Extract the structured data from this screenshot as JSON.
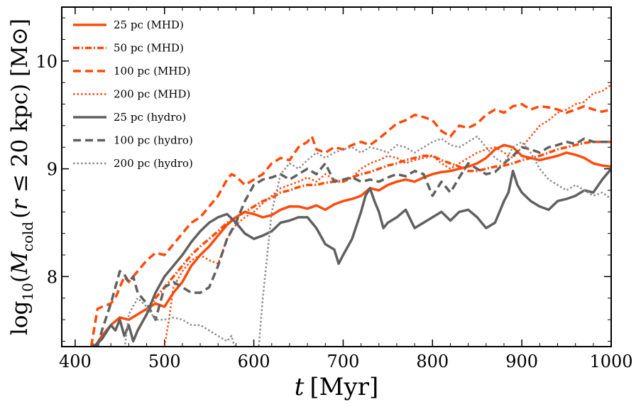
{
  "chart_data": {
    "type": "line",
    "xlabel": "t [Myr]",
    "ylabel": "log10(Mcold (r ≤ 20 kpc) [M⊙]",
    "xlabel_parts": {
      "var": "t",
      "unit": "[Myr]"
    },
    "ylabel_parts": {
      "log": "log",
      "sub": "10",
      "open": "(",
      "M": "M",
      "cold": "cold",
      "r": "r",
      "le": " ≤ 20 kpc) [M",
      "sun": "⊙",
      "close": "]"
    },
    "xlim": [
      385,
      1000
    ],
    "ylim": [
      7.35,
      10.5
    ],
    "xticks": [
      400,
      500,
      600,
      700,
      800,
      900,
      1000
    ],
    "xtick_labels": [
      "400",
      "500",
      "600",
      "700",
      "800",
      "900",
      "1000"
    ],
    "yticks": [
      8,
      9,
      10
    ],
    "ytick_labels": [
      "8",
      "9",
      "10"
    ],
    "legend_position": "top-left",
    "series": [
      {
        "name": "25 pc (MHD)",
        "color": "#ff4a0a",
        "style": "solid",
        "x": [
          418,
          430,
          440,
          450,
          460,
          470,
          480,
          490,
          500,
          510,
          520,
          530,
          540,
          550,
          560,
          570,
          580,
          590,
          600,
          610,
          620,
          630,
          640,
          650,
          660,
          670,
          680,
          690,
          700,
          710,
          720,
          730,
          740,
          750,
          760,
          770,
          780,
          790,
          800,
          810,
          820,
          830,
          840,
          850,
          860,
          870,
          880,
          890,
          900,
          910,
          920,
          930,
          940,
          950,
          960,
          970,
          980,
          990,
          1000
        ],
        "y": [
          7.3,
          7.45,
          7.55,
          7.62,
          7.6,
          7.65,
          7.7,
          7.75,
          7.72,
          7.85,
          7.95,
          8.1,
          8.2,
          8.28,
          8.38,
          8.48,
          8.55,
          8.6,
          8.58,
          8.55,
          8.57,
          8.62,
          8.65,
          8.65,
          8.63,
          8.66,
          8.62,
          8.67,
          8.7,
          8.72,
          8.75,
          8.82,
          8.8,
          8.85,
          8.88,
          8.9,
          8.88,
          8.92,
          8.95,
          8.97,
          8.98,
          9.0,
          9.02,
          9.05,
          9.1,
          9.18,
          9.22,
          9.2,
          9.12,
          9.1,
          9.08,
          9.1,
          9.12,
          9.15,
          9.13,
          9.1,
          9.05,
          9.03,
          9.02
        ]
      },
      {
        "name": "50 pc (MHD)",
        "color": "#ff4a0a",
        "style": "dashdot",
        "x": [
          470,
          480,
          490,
          500,
          510,
          520,
          530,
          540,
          550,
          560,
          570,
          580,
          590,
          600,
          610,
          620,
          630,
          640,
          650,
          660,
          670,
          680,
          690,
          700,
          710,
          720,
          730,
          740,
          750,
          760,
          770,
          780,
          790,
          800,
          810,
          820,
          830,
          840,
          850,
          860,
          870,
          880,
          890,
          900,
          910,
          920,
          930,
          940,
          950,
          960,
          970,
          980,
          990,
          1000
        ],
        "y": [
          7.5,
          7.65,
          7.8,
          7.9,
          8.0,
          8.1,
          8.2,
          8.28,
          8.35,
          8.42,
          8.5,
          8.55,
          8.6,
          8.65,
          8.7,
          8.73,
          8.78,
          8.8,
          8.83,
          8.85,
          8.85,
          8.87,
          8.88,
          8.88,
          8.92,
          8.95,
          8.97,
          9.0,
          9.03,
          9.05,
          9.08,
          9.1,
          9.12,
          9.12,
          9.08,
          9.05,
          9.02,
          8.98,
          8.98,
          9.0,
          9.02,
          9.03,
          9.05,
          9.08,
          9.1,
          9.12,
          9.15,
          9.18,
          9.2,
          9.22,
          9.24,
          9.25,
          9.25,
          9.25
        ]
      },
      {
        "name": "100 pc (MHD)",
        "color": "#ff4a0a",
        "style": "dashed",
        "x": [
          418,
          425,
          430,
          440,
          445,
          450,
          455,
          460,
          470,
          480,
          490,
          500,
          510,
          520,
          530,
          540,
          550,
          560,
          570,
          575,
          580,
          590,
          600,
          610,
          620,
          630,
          640,
          650,
          660,
          665,
          670,
          680,
          690,
          700,
          710,
          720,
          730,
          740,
          750,
          760,
          770,
          780,
          790,
          800,
          810,
          820,
          830,
          840,
          850,
          860,
          870,
          880,
          890,
          900,
          910,
          920,
          930,
          940,
          950,
          960,
          970,
          980,
          990,
          1000
        ],
        "y": [
          7.35,
          7.7,
          7.72,
          7.75,
          7.8,
          7.9,
          8.0,
          7.95,
          8.05,
          8.15,
          8.22,
          8.2,
          8.3,
          8.4,
          8.5,
          8.55,
          8.65,
          8.75,
          8.9,
          8.95,
          8.93,
          8.85,
          8.9,
          8.95,
          9.05,
          9.1,
          9.08,
          9.2,
          9.25,
          9.3,
          9.18,
          9.15,
          9.2,
          9.18,
          9.22,
          9.25,
          9.22,
          9.28,
          9.35,
          9.42,
          9.45,
          9.5,
          9.48,
          9.45,
          9.35,
          9.3,
          9.4,
          9.38,
          9.42,
          9.5,
          9.55,
          9.52,
          9.58,
          9.6,
          9.55,
          9.58,
          9.57,
          9.55,
          9.52,
          9.55,
          9.58,
          9.55,
          9.53,
          9.55
        ]
      },
      {
        "name": "200 pc (MHD)",
        "color": "#ff4a0a",
        "style": "dotted",
        "x": [
          500,
          505,
          510,
          520,
          530,
          540,
          550,
          560,
          570,
          580,
          590,
          600,
          610,
          620,
          630,
          640,
          650,
          660,
          670,
          680,
          690,
          700,
          710,
          720,
          730,
          740,
          750,
          760,
          770,
          780,
          790,
          800,
          810,
          820,
          830,
          840,
          850,
          860,
          870,
          880,
          890,
          900,
          910,
          920,
          930,
          940,
          950,
          960,
          970,
          980,
          990,
          1000
        ],
        "y": [
          7.35,
          7.6,
          7.9,
          8.05,
          8.15,
          8.2,
          8.15,
          8.12,
          8.35,
          8.48,
          8.55,
          8.6,
          8.68,
          8.75,
          8.82,
          8.85,
          8.88,
          8.92,
          8.88,
          8.95,
          8.9,
          8.88,
          8.92,
          9.0,
          9.05,
          9.08,
          9.12,
          9.1,
          9.05,
          9.08,
          9.1,
          9.12,
          9.05,
          9.0,
          9.05,
          9.1,
          9.15,
          9.18,
          9.2,
          9.15,
          9.1,
          9.2,
          9.3,
          9.4,
          9.45,
          9.52,
          9.55,
          9.6,
          9.62,
          9.7,
          9.72,
          9.78
        ]
      },
      {
        "name": "25 pc (hydro)",
        "color": "#606060",
        "style": "solid",
        "x": [
          420,
          425,
          430,
          440,
          445,
          450,
          455,
          460,
          465,
          470,
          480,
          490,
          500,
          510,
          520,
          530,
          540,
          550,
          560,
          570,
          580,
          590,
          600,
          610,
          620,
          630,
          640,
          650,
          660,
          670,
          680,
          690,
          695,
          700,
          710,
          720,
          725,
          730,
          735,
          740,
          745,
          750,
          760,
          770,
          780,
          790,
          800,
          810,
          820,
          830,
          840,
          850,
          860,
          870,
          880,
          885,
          890,
          895,
          900,
          910,
          920,
          930,
          940,
          950,
          960,
          970,
          980,
          990,
          1000
        ],
        "y": [
          7.35,
          7.38,
          7.42,
          7.55,
          7.5,
          7.6,
          7.45,
          7.55,
          7.4,
          7.5,
          7.65,
          7.85,
          8.0,
          8.1,
          8.2,
          8.32,
          8.42,
          8.5,
          8.55,
          8.58,
          8.5,
          8.4,
          8.35,
          8.38,
          8.42,
          8.5,
          8.52,
          8.55,
          8.55,
          8.45,
          8.3,
          8.25,
          8.12,
          8.2,
          8.35,
          8.6,
          8.75,
          8.82,
          8.7,
          8.6,
          8.45,
          8.5,
          8.55,
          8.62,
          8.45,
          8.5,
          8.55,
          8.6,
          8.52,
          8.6,
          8.62,
          8.55,
          8.45,
          8.5,
          8.7,
          8.78,
          8.98,
          8.85,
          8.78,
          8.7,
          8.65,
          8.62,
          8.7,
          8.72,
          8.75,
          8.8,
          8.78,
          8.9,
          9.0
        ]
      },
      {
        "name": "100 pc (hydro)",
        "color": "#606060",
        "style": "dashed",
        "x": [
          425,
          430,
          440,
          445,
          450,
          455,
          460,
          465,
          470,
          480,
          490,
          500,
          510,
          520,
          530,
          540,
          550,
          560,
          570,
          580,
          590,
          600,
          610,
          620,
          630,
          640,
          650,
          660,
          670,
          680,
          690,
          700,
          710,
          720,
          730,
          740,
          750,
          760,
          770,
          780,
          790,
          800,
          810,
          820,
          830,
          840,
          850,
          860,
          870,
          880,
          890,
          900,
          910,
          920,
          930,
          940,
          950,
          960,
          970,
          980,
          990,
          1000
        ],
        "y": [
          7.35,
          7.5,
          7.75,
          7.9,
          8.05,
          8.02,
          7.95,
          8.0,
          7.85,
          7.75,
          7.6,
          7.9,
          7.95,
          7.9,
          7.85,
          7.85,
          7.9,
          8.1,
          8.35,
          8.5,
          8.7,
          8.85,
          8.9,
          8.92,
          8.95,
          8.9,
          8.95,
          9.0,
          8.95,
          9.05,
          8.88,
          8.9,
          8.92,
          8.88,
          8.9,
          8.88,
          8.92,
          8.95,
          8.93,
          8.98,
          8.95,
          8.75,
          8.88,
          8.78,
          8.92,
          9.05,
          9.0,
          8.95,
          8.97,
          9.05,
          9.12,
          9.2,
          9.18,
          9.15,
          9.2,
          9.22,
          9.25,
          9.23,
          9.28,
          9.25,
          9.25,
          9.25
        ]
      },
      {
        "name": "200 pc (hydro)",
        "color": "#8c8c8c",
        "style": "dotted",
        "x": [
          455,
          460,
          470,
          480,
          490,
          500,
          510,
          520,
          530,
          540,
          550,
          560,
          570,
          575,
          580,
          585,
          590,
          600,
          605,
          610,
          615,
          620,
          630,
          640,
          650,
          660,
          670,
          680,
          690,
          700,
          710,
          720,
          730,
          740,
          750,
          760,
          770,
          780,
          790,
          800,
          810,
          820,
          830,
          840,
          850,
          860,
          870,
          880,
          890,
          900,
          910,
          920,
          930,
          940,
          950,
          960,
          970,
          980,
          990,
          1000
        ],
        "y": [
          7.3,
          7.65,
          7.8,
          7.72,
          7.6,
          7.6,
          7.62,
          7.6,
          7.55,
          7.55,
          7.5,
          7.45,
          7.4,
          7.45,
          7.3,
          7.3,
          7.3,
          7.3,
          7.3,
          7.8,
          8.2,
          8.6,
          8.95,
          9.05,
          9.0,
          9.08,
          9.15,
          9.1,
          9.15,
          9.18,
          9.2,
          9.15,
          9.2,
          9.18,
          9.15,
          9.22,
          9.2,
          9.15,
          9.2,
          9.25,
          9.28,
          9.22,
          9.2,
          9.25,
          9.3,
          9.2,
          9.1,
          9.05,
          9.2,
          9.25,
          9.15,
          9.0,
          8.9,
          8.85,
          8.8,
          8.85,
          8.8,
          8.75,
          8.78,
          8.72
        ]
      }
    ]
  }
}
